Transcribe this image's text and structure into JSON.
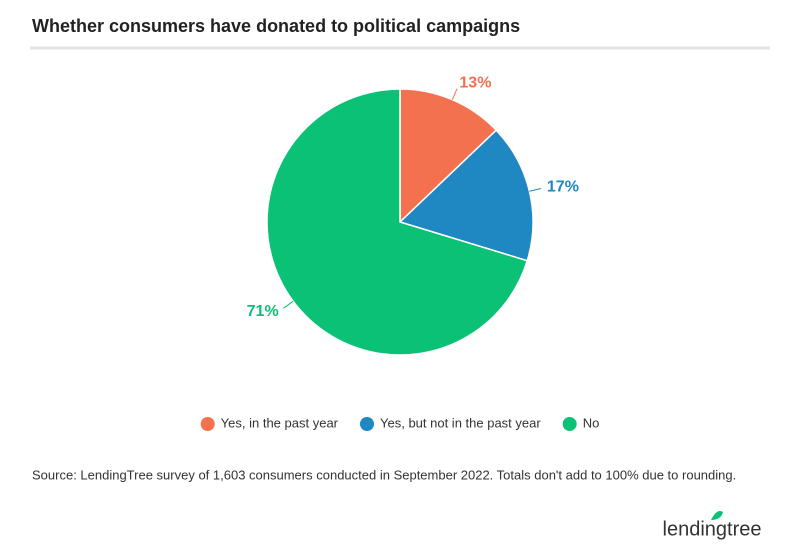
{
  "chart_data": {
    "type": "pie",
    "title": "Whether consumers have donated to political campaigns",
    "categories": [
      "Yes, in the past year",
      "Yes, but not in the past year",
      "No"
    ],
    "values": [
      13,
      17,
      71
    ],
    "value_labels": [
      "13%",
      "17%",
      "71%"
    ],
    "colors": [
      "#f4714f",
      "#1f87c2",
      "#0bc175"
    ],
    "legend": "bottom",
    "source": "Source: LendingTree survey of 1,603 consumers conducted in September 2022. Totals don't add to 100% due to rounding.",
    "logo": "lendingtree"
  }
}
